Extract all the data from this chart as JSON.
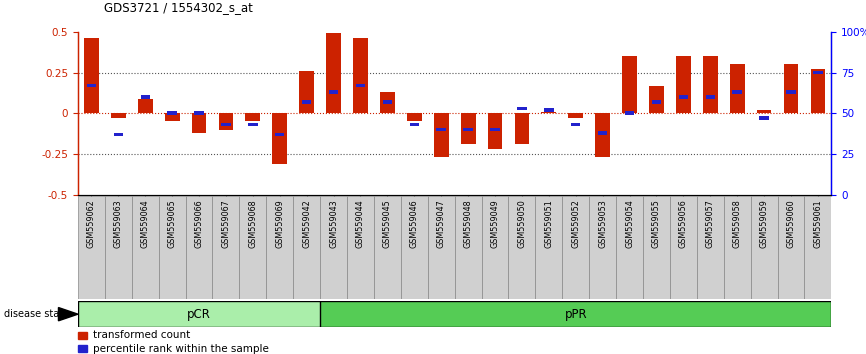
{
  "title": "GDS3721 / 1554302_s_at",
  "samples": [
    "GSM559062",
    "GSM559063",
    "GSM559064",
    "GSM559065",
    "GSM559066",
    "GSM559067",
    "GSM559068",
    "GSM559069",
    "GSM559042",
    "GSM559043",
    "GSM559044",
    "GSM559045",
    "GSM559046",
    "GSM559047",
    "GSM559048",
    "GSM559049",
    "GSM559050",
    "GSM559051",
    "GSM559052",
    "GSM559053",
    "GSM559054",
    "GSM559055",
    "GSM559056",
    "GSM559057",
    "GSM559058",
    "GSM559059",
    "GSM559060",
    "GSM559061"
  ],
  "transformed_count": [
    0.46,
    -0.03,
    0.09,
    -0.05,
    -0.12,
    -0.1,
    -0.05,
    -0.31,
    0.26,
    0.49,
    0.46,
    0.13,
    -0.05,
    -0.27,
    -0.19,
    -0.22,
    -0.19,
    0.01,
    -0.03,
    -0.27,
    0.35,
    0.17,
    0.35,
    0.35,
    0.3,
    0.02,
    0.3,
    0.27
  ],
  "percentile_rank": [
    0.67,
    0.37,
    0.6,
    0.5,
    0.5,
    0.43,
    0.43,
    0.37,
    0.57,
    0.63,
    0.67,
    0.57,
    0.43,
    0.4,
    0.4,
    0.4,
    0.53,
    0.52,
    0.43,
    0.38,
    0.5,
    0.57,
    0.6,
    0.6,
    0.63,
    0.47,
    0.63,
    0.75
  ],
  "pcr_count": 9,
  "ppr_count": 19,
  "pcr_color": "#aaeeaa",
  "ppr_color": "#55cc55",
  "bar_color_red": "#cc2200",
  "bar_color_blue": "#2222cc",
  "ylim": [
    -0.5,
    0.5
  ],
  "yticks_left": [
    -0.5,
    -0.25,
    0.0,
    0.25,
    0.5
  ],
  "yticks_right": [
    0,
    25,
    50,
    75,
    100
  ],
  "background_color": "#ffffff",
  "dotted_line_color": "#555555",
  "zero_line_color": "#cc2200",
  "tick_bg_color": "#cccccc"
}
